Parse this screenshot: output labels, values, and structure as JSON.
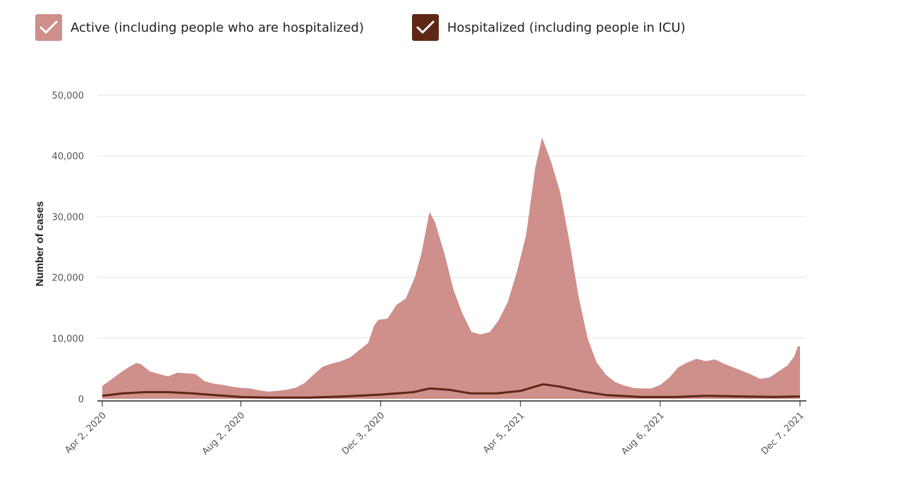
{
  "legend": [
    {
      "label": "Active (including people who are hospitalized)",
      "color": "#cf8f8a",
      "checked": true
    },
    {
      "label": "Hospitalized (including people in ICU)",
      "color": "#5e2716",
      "checked": true
    }
  ],
  "chart_data": {
    "type": "area",
    "title": "",
    "xlabel": "",
    "ylabel": "Number of cases",
    "ylim": [
      0,
      50000
    ],
    "yticks": [
      0,
      10000,
      20000,
      30000,
      40000,
      50000
    ],
    "ytick_labels": [
      "0",
      "10,000",
      "20,000",
      "30,000",
      "40,000",
      "50,000"
    ],
    "xlim": [
      "2020-04-02",
      "2021-12-07"
    ],
    "xticks": [
      "2020-04-02",
      "2020-08-02",
      "2020-12-03",
      "2021-04-05",
      "2021-08-06",
      "2021-12-07"
    ],
    "xtick_labels": [
      "Apr 2, 2020",
      "Aug 2, 2020",
      "Dec 3, 2020",
      "Apr 5, 2021",
      "Aug 6, 2021",
      "Dec 7, 2021"
    ],
    "grid": true,
    "series": [
      {
        "name": "Active (including people who are hospitalized)",
        "type": "area",
        "color": "#cf8f8a",
        "points": [
          [
            "2020-04-02",
            2100
          ],
          [
            "2020-04-10",
            3200
          ],
          [
            "2020-04-18",
            4300
          ],
          [
            "2020-04-26",
            5300
          ],
          [
            "2020-05-02",
            5900
          ],
          [
            "2020-05-06",
            5700
          ],
          [
            "2020-05-14",
            4500
          ],
          [
            "2020-05-22",
            4100
          ],
          [
            "2020-05-30",
            3700
          ],
          [
            "2020-06-07",
            4300
          ],
          [
            "2020-06-15",
            4200
          ],
          [
            "2020-06-23",
            4100
          ],
          [
            "2020-07-01",
            2900
          ],
          [
            "2020-07-09",
            2500
          ],
          [
            "2020-07-17",
            2300
          ],
          [
            "2020-07-25",
            2000
          ],
          [
            "2020-08-02",
            1800
          ],
          [
            "2020-08-10",
            1700
          ],
          [
            "2020-08-18",
            1400
          ],
          [
            "2020-08-26",
            1200
          ],
          [
            "2020-09-03",
            1300
          ],
          [
            "2020-09-11",
            1500
          ],
          [
            "2020-09-19",
            1800
          ],
          [
            "2020-09-27",
            2600
          ],
          [
            "2020-10-05",
            4000
          ],
          [
            "2020-10-13",
            5300
          ],
          [
            "2020-10-21",
            5800
          ],
          [
            "2020-10-29",
            6200
          ],
          [
            "2020-11-06",
            6800
          ],
          [
            "2020-11-14",
            8000
          ],
          [
            "2020-11-22",
            9200
          ],
          [
            "2020-11-27",
            12000
          ],
          [
            "2020-12-01",
            13000
          ],
          [
            "2020-12-09",
            13200
          ],
          [
            "2020-12-17",
            15500
          ],
          [
            "2020-12-25",
            16500
          ],
          [
            "2021-01-02",
            20000
          ],
          [
            "2021-01-08",
            24000
          ],
          [
            "2021-01-12",
            28000
          ],
          [
            "2021-01-15",
            30800
          ],
          [
            "2021-01-20",
            29000
          ],
          [
            "2021-01-28",
            24000
          ],
          [
            "2021-02-05",
            18000
          ],
          [
            "2021-02-13",
            14000
          ],
          [
            "2021-02-21",
            11000
          ],
          [
            "2021-03-01",
            10600
          ],
          [
            "2021-03-09",
            11000
          ],
          [
            "2021-03-17",
            13000
          ],
          [
            "2021-03-25",
            16000
          ],
          [
            "2021-04-02",
            21000
          ],
          [
            "2021-04-10",
            27000
          ],
          [
            "2021-04-18",
            38000
          ],
          [
            "2021-04-24",
            43000
          ],
          [
            "2021-05-02",
            39000
          ],
          [
            "2021-05-10",
            34000
          ],
          [
            "2021-05-18",
            26000
          ],
          [
            "2021-05-26",
            17000
          ],
          [
            "2021-06-03",
            10000
          ],
          [
            "2021-06-11",
            6000
          ],
          [
            "2021-06-19",
            4000
          ],
          [
            "2021-06-27",
            2800
          ],
          [
            "2021-07-05",
            2200
          ],
          [
            "2021-07-13",
            1800
          ],
          [
            "2021-07-21",
            1700
          ],
          [
            "2021-07-29",
            1700
          ],
          [
            "2021-08-06",
            2300
          ],
          [
            "2021-08-14",
            3500
          ],
          [
            "2021-08-22",
            5200
          ],
          [
            "2021-08-30",
            6000
          ],
          [
            "2021-09-07",
            6600
          ],
          [
            "2021-09-15",
            6200
          ],
          [
            "2021-09-23",
            6500
          ],
          [
            "2021-10-01",
            5800
          ],
          [
            "2021-10-09",
            5200
          ],
          [
            "2021-10-17",
            4600
          ],
          [
            "2021-10-25",
            4000
          ],
          [
            "2021-11-02",
            3300
          ],
          [
            "2021-11-10",
            3500
          ],
          [
            "2021-11-18",
            4500
          ],
          [
            "2021-11-26",
            5500
          ],
          [
            "2021-12-02",
            7000
          ],
          [
            "2021-12-05",
            8600
          ],
          [
            "2021-12-07",
            8700
          ]
        ]
      },
      {
        "name": "Hospitalized (including people in ICU)",
        "type": "line",
        "color": "#5e2716",
        "points": [
          [
            "2020-04-02",
            500
          ],
          [
            "2020-04-20",
            900
          ],
          [
            "2020-05-10",
            1100
          ],
          [
            "2020-05-30",
            1100
          ],
          [
            "2020-06-20",
            900
          ],
          [
            "2020-07-10",
            600
          ],
          [
            "2020-08-02",
            300
          ],
          [
            "2020-08-30",
            200
          ],
          [
            "2020-10-01",
            200
          ],
          [
            "2020-11-01",
            400
          ],
          [
            "2020-12-03",
            700
          ],
          [
            "2021-01-01",
            1100
          ],
          [
            "2021-01-15",
            1700
          ],
          [
            "2021-02-01",
            1500
          ],
          [
            "2021-02-20",
            900
          ],
          [
            "2021-03-15",
            900
          ],
          [
            "2021-04-05",
            1300
          ],
          [
            "2021-04-25",
            2400
          ],
          [
            "2021-05-10",
            2000
          ],
          [
            "2021-05-30",
            1200
          ],
          [
            "2021-06-20",
            600
          ],
          [
            "2021-07-20",
            300
          ],
          [
            "2021-08-20",
            300
          ],
          [
            "2021-09-15",
            500
          ],
          [
            "2021-10-15",
            400
          ],
          [
            "2021-11-15",
            300
          ],
          [
            "2021-12-07",
            400
          ]
        ]
      }
    ]
  }
}
